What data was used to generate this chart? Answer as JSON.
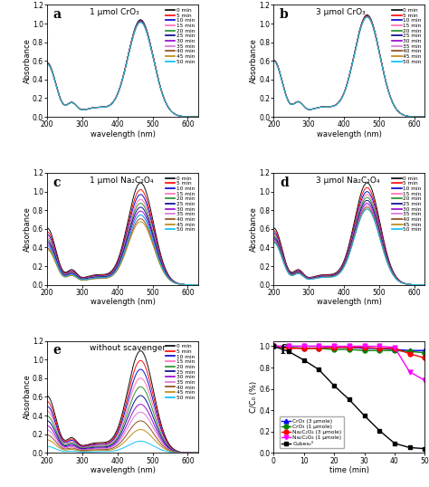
{
  "panel_labels": [
    "a",
    "b",
    "c",
    "d",
    "e",
    "f"
  ],
  "times": [
    0,
    5,
    10,
    15,
    20,
    25,
    30,
    35,
    40,
    45,
    50
  ],
  "time_colors": [
    "#000000",
    "#ff0000",
    "#0000cd",
    "#ff69b4",
    "#228b22",
    "#00008b",
    "#9400d3",
    "#da70d6",
    "#8b4513",
    "#b8860b",
    "#00bfff"
  ],
  "panel_a_label": "1 μmol CrO₃",
  "panel_b_label": "3 μmol CrO₃",
  "panel_c_label": "1 μmol Na₂C₂O₄",
  "panel_d_label": "3 μmol Na₂C₂O₄",
  "panel_e_label": "without scavenger",
  "xlabel": "wavelength (nm)",
  "ylabel": "Absorbance",
  "f_xlabel": "time (min)",
  "f_ylabel": "C/C₀ (%)",
  "f_series_labels": [
    "CrO₃ (3 μmole)",
    "CrO₃ (1 μmole)",
    "Na₂C₂O₄ (3 μmole)",
    "Na₂C₂O₄ (1 μmole)",
    "Cubesₖᴵᴵ"
  ],
  "f_series_colors": [
    "#0000ff",
    "#008000",
    "#ff0000",
    "#ff00ff",
    "#000000"
  ],
  "f_series_markers": [
    "^",
    "o",
    "o",
    "v",
    "s"
  ],
  "f_data": {
    "CrO3_3": [
      1.0,
      1.0,
      1.0,
      1.0,
      0.99,
      0.99,
      0.98,
      0.98,
      0.97,
      0.96,
      0.96
    ],
    "CrO3_1": [
      1.0,
      0.99,
      0.98,
      0.98,
      0.97,
      0.97,
      0.96,
      0.96,
      0.96,
      0.95,
      0.94
    ],
    "Na2C2O4_3": [
      1.0,
      0.98,
      0.98,
      0.98,
      0.99,
      0.99,
      0.99,
      0.98,
      0.98,
      0.93,
      0.89
    ],
    "Na2C2O4_1": [
      1.0,
      1.0,
      1.0,
      1.0,
      1.0,
      1.0,
      1.0,
      1.0,
      0.99,
      0.76,
      0.68
    ],
    "Cubes": [
      1.0,
      0.95,
      0.87,
      0.78,
      0.63,
      0.5,
      0.35,
      0.21,
      0.09,
      0.05,
      0.04
    ]
  },
  "scales_a": [
    1.0,
    0.99,
    0.99,
    0.985,
    0.984,
    0.982,
    0.98,
    0.978,
    0.976,
    0.974,
    0.972
  ],
  "scales_b": [
    1.05,
    1.045,
    1.042,
    1.04,
    1.038,
    1.036,
    1.034,
    1.032,
    1.03,
    1.028,
    1.025
  ],
  "scales_c": [
    1.05,
    0.98,
    0.93,
    0.88,
    0.84,
    0.8,
    0.76,
    0.72,
    0.68,
    0.65,
    0.72
  ],
  "scales_d": [
    1.05,
    1.0,
    0.96,
    0.93,
    0.9,
    0.87,
    0.84,
    0.82,
    0.8,
    0.78,
    0.78
  ],
  "scales_e": [
    1.05,
    0.95,
    0.86,
    0.77,
    0.68,
    0.59,
    0.5,
    0.42,
    0.33,
    0.24,
    0.12
  ]
}
